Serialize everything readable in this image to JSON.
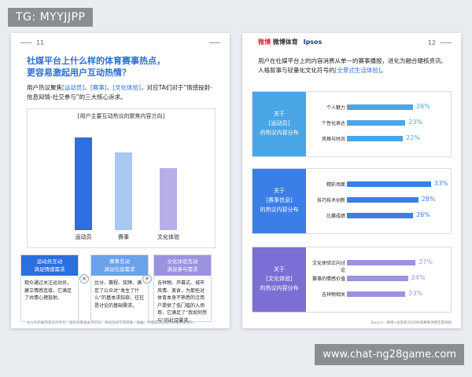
{
  "tg_badge": "TG: MYYJJPP",
  "watermark": "www.chat-ng28game.com",
  "left_page": {
    "page_number": "11",
    "title_line1": "社媒平台上什么样的体育赛事热点，",
    "title_line2": "更容易激起用户互动热情？",
    "desc_pre": "用户热议聚焦",
    "desc_h1": "[运动员]",
    "desc_sep1": "、",
    "desc_h2": "[赛事]",
    "desc_sep2": "、",
    "desc_h3": "[文化体验]",
    "desc_post": "，对应TA们对于“情感投射-信息知情-社交参与”的三大核心诉求。",
    "chart_title": "[用户主要互动热议的聚焦内容方向]",
    "footer": "本文件所载内容仅供参考，版权归属相关方所有，未经授权不得转载、摘编、传播或以其他方式使用本文件。",
    "cards": [
      {
        "head": "运动员互动\n满足情感需求",
        "body": "观众通过关注运动员，建立情感连接，它满足了共情心理投射。"
      },
      {
        "head": "赛事互动\n满足信息需求",
        "body": "比分、赛程、奖牌、满足了公众对“发生了什么”的基本求知欲，往往是讨论的基础需求。"
      },
      {
        "head": "文化体验互动\n满足参与需求",
        "body": "吉祥物、开幕式、城市风情、美食，为那些对体育本身不熟悉的泛用户提供了低门槛的入场券，它满足了“我如何参与”的社交需求。"
      }
    ]
  },
  "chart_data": {
    "type": "bar",
    "categories": [
      "运动员",
      "赛事",
      "文化体验"
    ],
    "values": [
      100,
      84,
      67
    ],
    "colors": [
      "#2b6fe0",
      "#a9c8f2",
      "#b6b0e6"
    ]
  },
  "right_page": {
    "page_number": "12",
    "brand1": "微博",
    "brand2": "微博体育",
    "brand3": "Ipsos",
    "title_pre": "用户在社媒平台上的内容消费从单一的赛事播报，进化为融合硬核资讯、人格叙事与轻量化文化符号的",
    "title_hl": "[全景式生活体验]",
    "title_post": "。",
    "source": "Source：微博×益普索2026体育赛事消费定量调研",
    "sections": [
      {
        "tag_line1": "关于",
        "tag_line2": "[运动员]",
        "tag_line3": "的热议内容分布",
        "tag_color": "#4aa6e6",
        "rows": [
          {
            "label": "个人魅力",
            "value": 26,
            "pct": "26%"
          },
          {
            "label": "个性化表达",
            "value": 23,
            "pct": "23%"
          },
          {
            "label": "风格与时尚",
            "value": 22,
            "pct": "22%"
          }
        ],
        "bar_color": "#4aa6e6"
      },
      {
        "tag_line1": "关于",
        "tag_line2": "[赛事信息]",
        "tag_line3": "的热议内容分布",
        "tag_color": "#3b7fe6",
        "rows": [
          {
            "label": "精彩场面",
            "value": 33,
            "pct": "33%"
          },
          {
            "label": "技巧技术创新",
            "value": 28,
            "pct": "28%"
          },
          {
            "label": "比赛成绩",
            "value": 26,
            "pct": "26%"
          }
        ],
        "bar_color": "#3b7fe6"
      },
      {
        "tag_line1": "关于",
        "tag_line2": "[文化体验]",
        "tag_line3": "的热议内容分布",
        "tag_color": "#7b6fd6",
        "rows": [
          {
            "label": "文化体验正向讨论",
            "value": 27,
            "pct": "27%"
          },
          {
            "label": "赛事的情感价值",
            "value": 24,
            "pct": "24%"
          },
          {
            "label": "吉祥物相关",
            "value": 23,
            "pct": "23%"
          }
        ],
        "bar_color": "#9b93e0"
      }
    ]
  }
}
